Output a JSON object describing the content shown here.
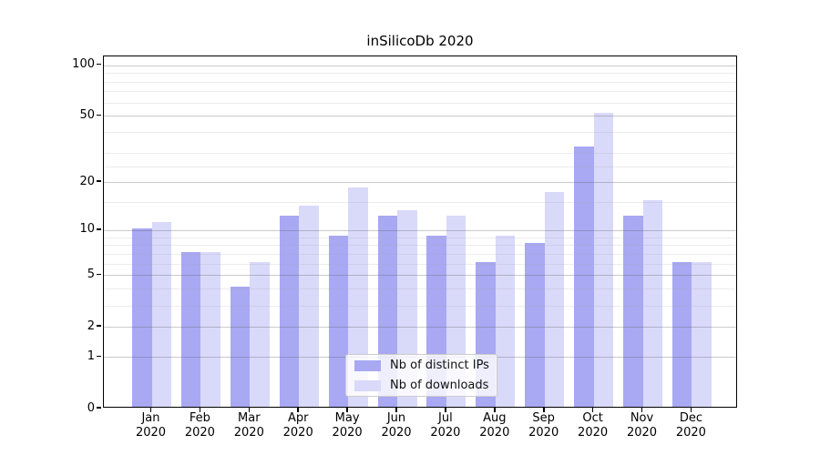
{
  "chart_data": {
    "type": "bar",
    "title": "inSilicoDb 2020",
    "categories": [
      "Jan",
      "Feb",
      "Mar",
      "Apr",
      "May",
      "Jun",
      "Jul",
      "Aug",
      "Sep",
      "Oct",
      "Nov",
      "Dec"
    ],
    "category_year": "2020",
    "series": [
      {
        "name": "Nb of distinct IPs",
        "color": "#a8a8f3",
        "values": [
          10,
          7,
          4,
          12,
          9,
          12,
          9,
          6,
          8,
          32,
          12,
          6
        ]
      },
      {
        "name": "Nb of downloads",
        "color": "#d9d9fa",
        "values": [
          11,
          7,
          6,
          14,
          18,
          13,
          12,
          9,
          17,
          51,
          15,
          6
        ]
      }
    ],
    "yscale": "log10(value+1)",
    "ylim": [
      0,
      101
    ],
    "yticks": [
      100,
      50,
      20,
      10,
      5,
      2,
      1,
      0
    ],
    "minor_gridlines": [
      3,
      4,
      6,
      7,
      8,
      9,
      15,
      25,
      30,
      40,
      60,
      70,
      80,
      90
    ],
    "grid": true,
    "grid_on_top": true,
    "legend_position": "lower center",
    "xlabel": "",
    "ylabel": "",
    "colors": {
      "bar_dark": "#a8a8f3",
      "bar_light": "#d9d9fa",
      "major_grid": "#c6c6c6",
      "minor_grid": "#ececec",
      "spine": "#000000",
      "background": "#ffffff"
    }
  }
}
